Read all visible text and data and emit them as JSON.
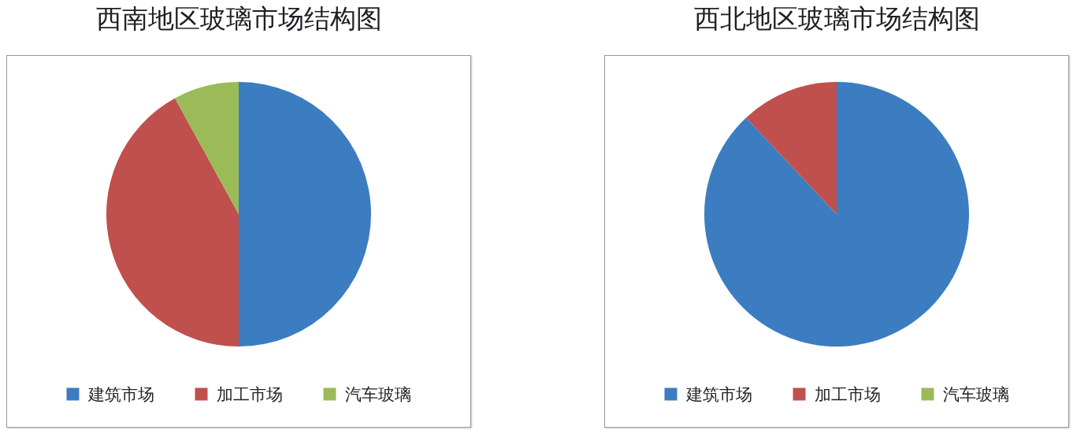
{
  "chart_data": [
    {
      "type": "pie",
      "title": "西南地区玻璃市场结构图",
      "categories": [
        "建筑市场",
        "加工市场",
        "汽车玻璃"
      ],
      "values": [
        50,
        42,
        8
      ],
      "colors": [
        "#3b7dc0",
        "#c0504d",
        "#9bbb59"
      ],
      "legend": "bottom"
    },
    {
      "type": "pie",
      "title": "西北地区玻璃市场结构图",
      "categories": [
        "建筑市场",
        "加工市场",
        "汽车玻璃"
      ],
      "values": [
        88,
        12,
        0
      ],
      "colors": [
        "#3b7dc0",
        "#c0504d",
        "#9bbb59"
      ],
      "legend": "bottom"
    }
  ]
}
